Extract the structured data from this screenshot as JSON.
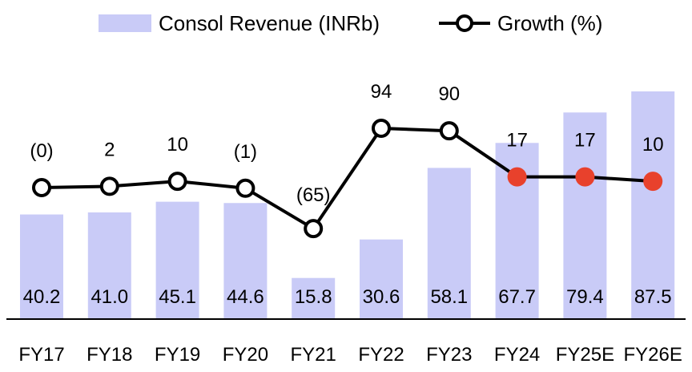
{
  "chart_data": {
    "type": "bar",
    "categories": [
      "FY17",
      "FY18",
      "FY19",
      "FY20",
      "FY21",
      "FY22",
      "FY23",
      "FY24",
      "FY25E",
      "FY26E"
    ],
    "series": [
      {
        "name": "Consol Revenue (INRb)",
        "type": "bar",
        "values": [
          40.2,
          41.0,
          45.1,
          44.6,
          15.8,
          30.6,
          58.1,
          67.7,
          79.4,
          87.5
        ],
        "labels": [
          "40.2",
          "41.0",
          "45.1",
          "44.6",
          "15.8",
          "30.6",
          "58.1",
          "67.7",
          "79.4",
          "87.5"
        ],
        "color": "#c9cbf7"
      },
      {
        "name": "Growth (%)",
        "type": "line",
        "values": [
          0,
          2,
          10,
          -1,
          -65,
          94,
          90,
          17,
          17,
          10
        ],
        "labels": [
          "(0)",
          "2",
          "10",
          "(1)",
          "(65)",
          "94",
          "90",
          "17",
          "17",
          "10"
        ],
        "color": "#000000",
        "marker_fill": "#ffffff",
        "forecast_marker_fill": "#e8412c",
        "forecast_from_index": 7
      }
    ],
    "xlabel": "",
    "ylabel": "",
    "grid": false,
    "legend": "top"
  }
}
